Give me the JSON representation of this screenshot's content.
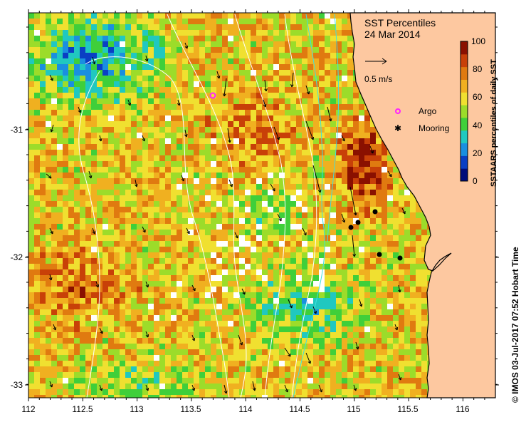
{
  "title": {
    "line1": "SST Percentiles",
    "line2": "24 Mar 2014"
  },
  "scale_arrow": {
    "label": "0.5 m/s"
  },
  "legend": {
    "argo": {
      "label": "Argo",
      "color": "#ff22ff"
    },
    "mooring": {
      "label": "Mooring",
      "color": "#000000"
    }
  },
  "colorbar": {
    "title": "SSTAARS percentiles of daily SST",
    "ticks": [
      "0",
      "20",
      "40",
      "60",
      "80",
      "100"
    ],
    "colors": [
      "#000c7a",
      "#0a3fc4",
      "#1a8fe0",
      "#20c8c0",
      "#3fcf3a",
      "#9cdc2a",
      "#f0e030",
      "#f0b020",
      "#e07a10",
      "#c84008",
      "#8a1000"
    ]
  },
  "axes": {
    "x_ticks": [
      "112",
      "112.5",
      "113",
      "113.5",
      "114",
      "114.5",
      "115",
      "115.5",
      "116"
    ],
    "y_ticks": [
      "-31",
      "-32",
      "-33"
    ]
  },
  "credit": "© IMOS 03-Jul-2017 07:52 Hobart Time",
  "colors": {
    "land": "#fdc8a0",
    "coast": "#000000",
    "frame": "#000000"
  }
}
